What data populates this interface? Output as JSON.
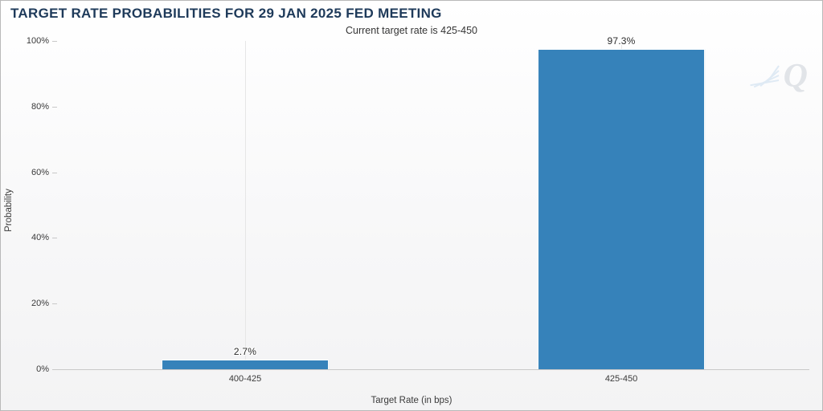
{
  "title": "TARGET RATE PROBABILITIES FOR 29 JAN 2025 FED MEETING",
  "title_color": "#1e3a5a",
  "subtitle": "Current target rate is 425-450",
  "subtitle_color": "#343434",
  "chart": {
    "type": "bar",
    "ylabel": "Probability",
    "xlabel": "Target Rate (in bps)",
    "label_color": "#3a3a3a",
    "ylim": [
      0,
      100
    ],
    "yticks": [
      0,
      20,
      40,
      60,
      80,
      100
    ],
    "ytick_suffix": "%",
    "categories": [
      "400-425",
      "425-450"
    ],
    "values": [
      2.7,
      97.3
    ],
    "value_labels": [
      "2.7%",
      "97.3%"
    ],
    "bar_color": "#3682ba",
    "bar_border": "#ffffff",
    "bar_width_pct": 22,
    "x_positions_pct": [
      25,
      75
    ],
    "grid_v_positions_pct": [
      25,
      75
    ],
    "grid_color": "#e6e6e6",
    "axis_color": "#c8c8c8",
    "tick_fontsize": 11,
    "label_fontsize": 11.5,
    "value_label_color": "#2b2b2b",
    "value_label_stroke": "#ffffff"
  },
  "watermark": {
    "glyph": "Q",
    "color": "#e1e4e8"
  }
}
